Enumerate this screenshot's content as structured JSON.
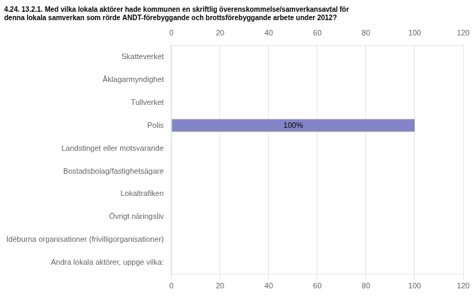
{
  "chart_data": {
    "type": "bar",
    "orientation": "horizontal",
    "title": [
      "4.24. 13.2.1. Med vilka lokala aktörer hade kommunen en skriftlig överenskommelse/samverkansavtal för",
      "denna lokala samverkan som rörde ANDT-förebyggande och brottsförebyggande arbete under 2012?"
    ],
    "categories": [
      "Skatteverket",
      "Åklagarmyndighet",
      "Tullverket",
      "Polis",
      "Landstinget eller motsvarande",
      "Bostadsbolag/fastighetsägare",
      "Lokaltrafiken",
      "Övrigt näringsliv",
      "Idéburna organisationer (frivilligorganisationer)",
      "Andra lokala aktörer, uppge vilka:"
    ],
    "values": [
      0,
      0,
      0,
      100,
      0,
      0,
      0,
      0,
      0,
      0
    ],
    "value_labels": [
      null,
      null,
      null,
      "100%",
      null,
      null,
      null,
      null,
      null,
      null
    ],
    "data_labels": true,
    "color": "#8484c8",
    "xlim": [
      0,
      120
    ],
    "xticks": [
      0,
      20,
      40,
      60,
      80,
      100,
      120
    ],
    "grid": true
  }
}
